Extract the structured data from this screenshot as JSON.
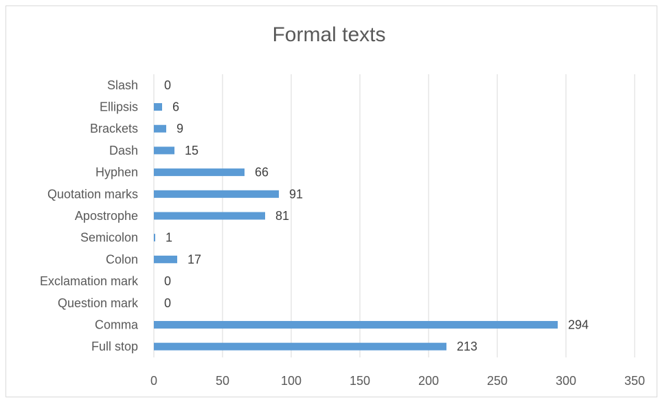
{
  "chart_data": {
    "type": "bar",
    "orientation": "horizontal",
    "title": "Formal texts",
    "xlabel": "",
    "ylabel": "",
    "categories": [
      "Full stop",
      "Comma",
      "Question mark",
      "Exclamation mark",
      "Colon",
      "Semicolon",
      "Apostrophe",
      "Quotation marks",
      "Hyphen",
      "Dash",
      "Brackets",
      "Ellipsis",
      "Slash"
    ],
    "values": [
      213,
      294,
      0,
      0,
      17,
      1,
      81,
      91,
      66,
      15,
      9,
      6,
      0
    ],
    "xlim": [
      0,
      350
    ],
    "x_ticks": [
      "0",
      "50",
      "100",
      "150",
      "200",
      "250",
      "300",
      "350"
    ],
    "x_tick_values": [
      0,
      50,
      100,
      150,
      200,
      250,
      300,
      350
    ],
    "grid": "vertical",
    "legend": "none",
    "data_labels": true,
    "bar_color": "#5b9bd5",
    "grid_color": "#d9d9d9",
    "text_color": "#595959"
  }
}
